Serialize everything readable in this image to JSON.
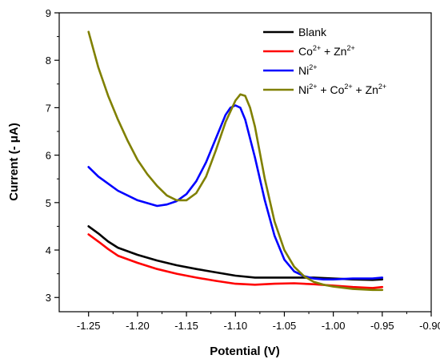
{
  "chart_data": {
    "type": "line",
    "xlabel": "Potential (V)",
    "ylabel": "Current (- μA)",
    "xlim": [
      -1.28,
      -0.9
    ],
    "ylim": [
      2.7,
      9
    ],
    "x_reversed": true,
    "xticks": [
      -1.25,
      -1.2,
      -1.15,
      -1.1,
      -1.05,
      -1.0,
      -0.95,
      -0.9
    ],
    "xtick_labels": [
      "-1.25",
      "-1.20",
      "-1.15",
      "-1.10",
      "-1.05",
      "-1.00",
      "-0.95",
      "-0.90"
    ],
    "yticks": [
      3,
      4,
      5,
      6,
      7,
      8,
      9
    ],
    "ytick_labels": [
      "3",
      "4",
      "5",
      "6",
      "7",
      "8",
      "9"
    ],
    "grid": false,
    "legend_position": "top-right",
    "series": [
      {
        "name": "Blank",
        "color": "#000000",
        "x": [
          -1.25,
          -1.24,
          -1.23,
          -1.22,
          -1.2,
          -1.18,
          -1.16,
          -1.14,
          -1.12,
          -1.1,
          -1.08,
          -1.06,
          -1.04,
          -1.02,
          -1.0,
          -0.98,
          -0.96,
          -0.95
        ],
        "y": [
          4.5,
          4.35,
          4.18,
          4.05,
          3.9,
          3.78,
          3.68,
          3.6,
          3.53,
          3.46,
          3.42,
          3.42,
          3.42,
          3.42,
          3.4,
          3.38,
          3.37,
          3.38
        ]
      },
      {
        "name": "Co2+ + Zn2+",
        "color": "#ff0000",
        "x": [
          -1.25,
          -1.24,
          -1.23,
          -1.22,
          -1.2,
          -1.18,
          -1.16,
          -1.14,
          -1.12,
          -1.1,
          -1.08,
          -1.06,
          -1.04,
          -1.02,
          -1.0,
          -0.98,
          -0.96,
          -0.95
        ],
        "y": [
          4.33,
          4.18,
          4.02,
          3.88,
          3.73,
          3.6,
          3.5,
          3.42,
          3.35,
          3.29,
          3.27,
          3.29,
          3.3,
          3.28,
          3.25,
          3.22,
          3.2,
          3.22
        ]
      },
      {
        "name": "Ni2+",
        "color": "#0000ff",
        "x": [
          -1.25,
          -1.24,
          -1.22,
          -1.2,
          -1.18,
          -1.17,
          -1.16,
          -1.15,
          -1.14,
          -1.13,
          -1.12,
          -1.11,
          -1.105,
          -1.1,
          -1.095,
          -1.09,
          -1.08,
          -1.07,
          -1.06,
          -1.05,
          -1.04,
          -1.03,
          -1.02,
          -1.01,
          -1.0,
          -0.98,
          -0.96,
          -0.95
        ],
        "y": [
          5.75,
          5.55,
          5.25,
          5.05,
          4.93,
          4.96,
          5.03,
          5.18,
          5.45,
          5.85,
          6.35,
          6.85,
          7.0,
          7.05,
          7.0,
          6.75,
          5.95,
          5.05,
          4.3,
          3.8,
          3.55,
          3.45,
          3.4,
          3.38,
          3.38,
          3.4,
          3.4,
          3.42
        ]
      },
      {
        "name": "Ni2+ + Co2+ + Zn2+",
        "color": "#808000",
        "x": [
          -1.25,
          -1.24,
          -1.23,
          -1.22,
          -1.21,
          -1.2,
          -1.19,
          -1.18,
          -1.17,
          -1.16,
          -1.15,
          -1.14,
          -1.13,
          -1.12,
          -1.11,
          -1.1,
          -1.095,
          -1.09,
          -1.085,
          -1.08,
          -1.07,
          -1.06,
          -1.05,
          -1.04,
          -1.03,
          -1.02,
          -1.01,
          -1.0,
          -0.98,
          -0.96,
          -0.95
        ],
        "y": [
          8.6,
          7.85,
          7.25,
          6.75,
          6.3,
          5.9,
          5.6,
          5.35,
          5.15,
          5.05,
          5.05,
          5.2,
          5.55,
          6.1,
          6.7,
          7.15,
          7.28,
          7.25,
          7.0,
          6.6,
          5.5,
          4.6,
          4.0,
          3.65,
          3.45,
          3.33,
          3.27,
          3.23,
          3.18,
          3.16,
          3.16
        ]
      }
    ]
  },
  "legend": {
    "items": [
      {
        "parts": [
          {
            "t": "Blank"
          }
        ]
      },
      {
        "parts": [
          {
            "t": "Co"
          },
          {
            "t": "2+",
            "sup": true
          },
          {
            "t": " + Zn"
          },
          {
            "t": "2+",
            "sup": true
          }
        ]
      },
      {
        "parts": [
          {
            "t": "Ni"
          },
          {
            "t": "2+",
            "sup": true
          }
        ]
      },
      {
        "parts": [
          {
            "t": "Ni"
          },
          {
            "t": "2+",
            "sup": true
          },
          {
            "t": " + Co"
          },
          {
            "t": "2+",
            "sup": true
          },
          {
            "t": " + Zn"
          },
          {
            "t": "2+",
            "sup": true
          }
        ]
      }
    ]
  }
}
